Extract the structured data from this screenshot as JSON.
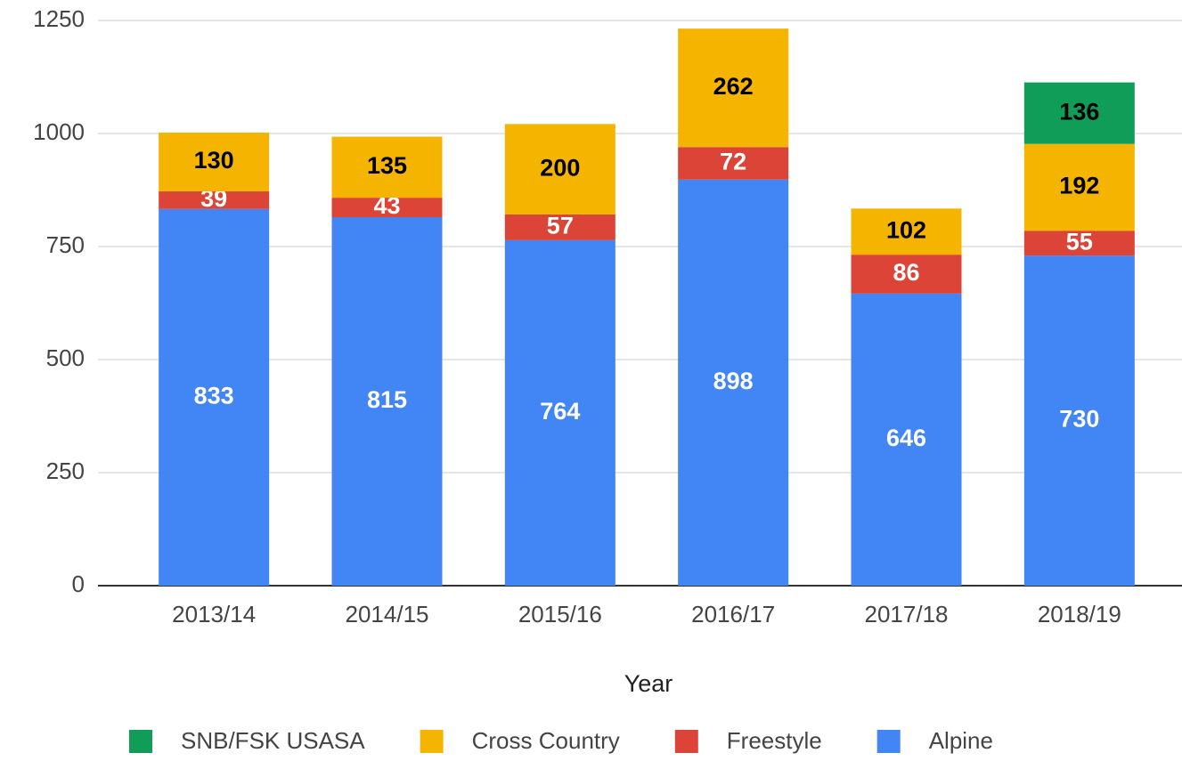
{
  "chart_data": {
    "type": "stacked_bar",
    "x_label": "Year",
    "categories": [
      "2013/14",
      "2014/15",
      "2015/16",
      "2016/17",
      "2017/18",
      "2018/19"
    ],
    "series": [
      {
        "name": "SNB/FSK USASA",
        "color": "#0f9d58",
        "label_color": "#000000",
        "values": [
          null,
          null,
          null,
          null,
          null,
          136
        ]
      },
      {
        "name": "Cross Country",
        "color": "#f4b400",
        "label_color": "#000000",
        "values": [
          130,
          135,
          200,
          262,
          102,
          192
        ]
      },
      {
        "name": "Freestyle",
        "color": "#db4437",
        "label_color": "#ffffff",
        "values": [
          39,
          43,
          57,
          72,
          86,
          55
        ]
      },
      {
        "name": "Alpine",
        "color": "#4285f4",
        "label_color": "#ffffff",
        "values": [
          833,
          815,
          764,
          898,
          646,
          730
        ]
      }
    ],
    "ylim": [
      0,
      1250
    ],
    "yticks": [
      0,
      250,
      500,
      750,
      1000,
      1250
    ],
    "grid": true,
    "legend": "bottom"
  }
}
